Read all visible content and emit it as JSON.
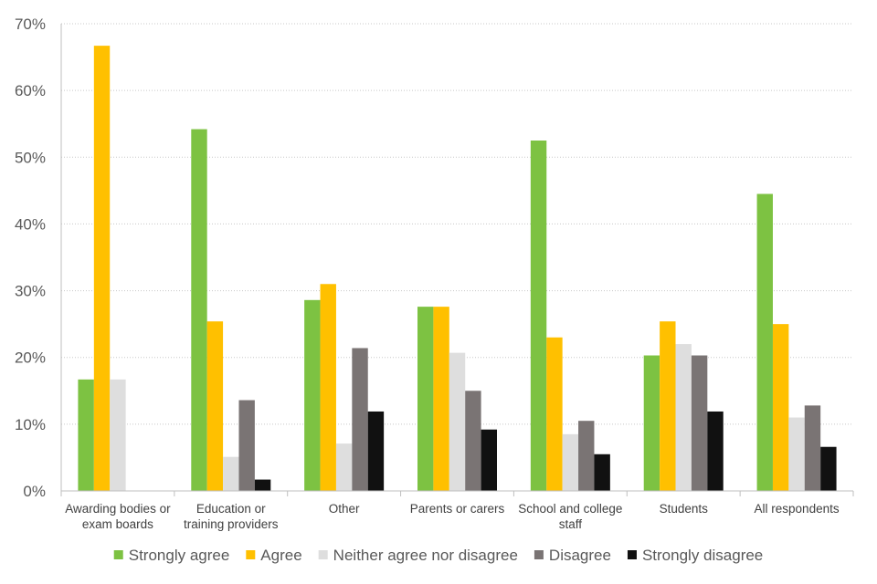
{
  "chart_data": {
    "type": "bar",
    "title": "",
    "xlabel": "",
    "ylabel": "",
    "ylim": [
      0,
      70
    ],
    "yticks": [
      0,
      10,
      20,
      30,
      40,
      50,
      60,
      70
    ],
    "ytick_labels": [
      "0%",
      "10%",
      "20%",
      "30%",
      "40%",
      "50%",
      "60%",
      "70%"
    ],
    "grid": true,
    "legend_position": "bottom",
    "categories": [
      [
        "Awarding bodies or",
        "exam boards"
      ],
      [
        "Education or",
        "training providers"
      ],
      [
        "Other"
      ],
      [
        "Parents or carers"
      ],
      [
        "School and college",
        "staff"
      ],
      [
        "Students"
      ],
      [
        "All respondents"
      ]
    ],
    "series": [
      {
        "name": "Strongly agree",
        "color": "#7dc242",
        "values": [
          16.7,
          54.2,
          28.6,
          27.6,
          52.5,
          20.3,
          44.5
        ]
      },
      {
        "name": "Agree",
        "color": "#ffc000",
        "values": [
          66.7,
          25.4,
          31.0,
          27.6,
          23.0,
          25.4,
          25.0
        ]
      },
      {
        "name": "Neither agree nor disagree",
        "color": "#dedede",
        "values": [
          16.7,
          5.1,
          7.1,
          20.7,
          8.5,
          22.0,
          11.0
        ]
      },
      {
        "name": "Disagree",
        "color": "#7a7474",
        "values": [
          0,
          13.6,
          21.4,
          15.0,
          10.5,
          20.3,
          12.8
        ]
      },
      {
        "name": "Strongly disagree",
        "color": "#111111",
        "values": [
          0,
          1.7,
          11.9,
          9.2,
          5.5,
          11.9,
          6.6
        ]
      }
    ]
  }
}
